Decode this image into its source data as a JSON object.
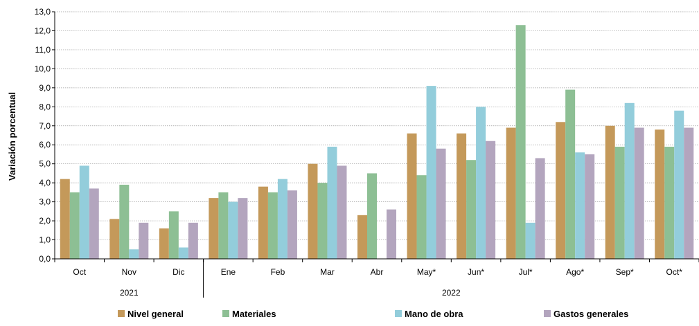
{
  "chart_data": {
    "type": "bar",
    "ylabel": "Variación porcentual",
    "ylim": [
      0,
      13
    ],
    "yticks": [
      "0,0",
      "1,0",
      "2,0",
      "3,0",
      "4,0",
      "5,0",
      "6,0",
      "7,0",
      "8,0",
      "9,0",
      "10,0",
      "11,0",
      "12,0",
      "13,0"
    ],
    "grid": true,
    "legend_position": "bottom",
    "categories": [
      "Oct",
      "Nov",
      "Dic",
      "Ene",
      "Feb",
      "Mar",
      "Abr",
      "May*",
      "Jun*",
      "Jul*",
      "Ago*",
      "Sep*",
      "Oct*"
    ],
    "year_groups": [
      {
        "label": "2021",
        "start": 0,
        "end": 2
      },
      {
        "label": "2022",
        "start": 3,
        "end": 12
      }
    ],
    "series": [
      {
        "name": "Nivel general",
        "color": "#C4995A",
        "values": [
          4.2,
          2.1,
          1.6,
          3.2,
          3.8,
          5.0,
          2.3,
          6.6,
          6.6,
          6.9,
          7.2,
          7.0,
          6.8
        ]
      },
      {
        "name": "Materiales",
        "color": "#8DBF94",
        "values": [
          3.5,
          3.9,
          2.5,
          3.5,
          3.5,
          4.0,
          4.5,
          4.4,
          5.2,
          12.3,
          8.9,
          5.9,
          5.9
        ]
      },
      {
        "name": "Mano de obra",
        "color": "#93CDDB",
        "values": [
          4.9,
          0.5,
          0.6,
          3.0,
          4.2,
          5.9,
          null,
          9.1,
          8.0,
          1.9,
          5.6,
          8.2,
          7.8
        ]
      },
      {
        "name": "Gastos generales",
        "color": "#B3A5BE",
        "values": [
          3.7,
          1.9,
          1.9,
          3.2,
          3.6,
          4.9,
          2.6,
          5.8,
          6.2,
          5.3,
          5.5,
          6.9,
          6.9
        ]
      }
    ]
  }
}
